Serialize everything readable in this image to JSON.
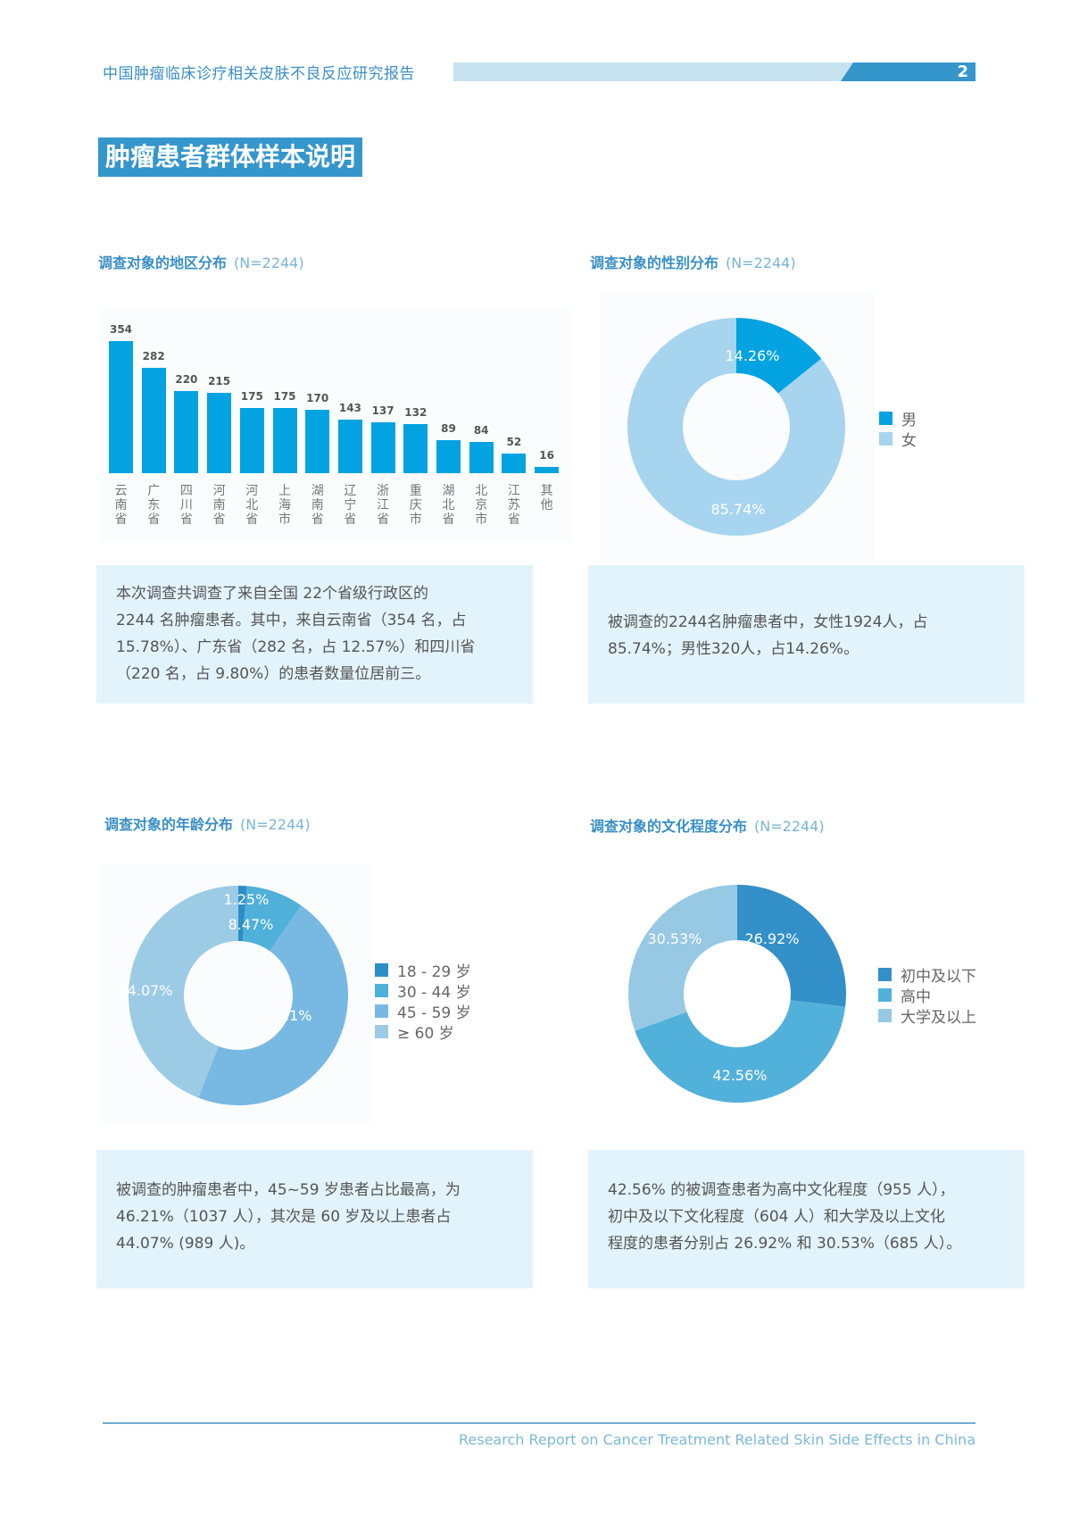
{
  "header": {
    "report_title": "中国肿瘤临床诊疗相关皮肤不良反应研究报告",
    "page_number": "2"
  },
  "page_title": "肿瘤患者群体样本说明",
  "colors": {
    "primary": "#3596cc",
    "bar": "#02a3e0",
    "info_bg": "#e2f3fb",
    "header_bar": "#c7e2ef"
  },
  "sections": {
    "region": {
      "title": "调查对象的地区分布",
      "n": "(N=2244)",
      "info": "本次调查共调查了来自全国 22个省级行政区的 2244 名肿瘤患者。其中，来自云南省（354 名，占 15.78%）、广东省（282 名，占 12.57%）和四川省（220 名，占 9.80%）的患者数量位居前三。",
      "info_lines": [
        "本次调查共调查了来自全国 22个省级行政区的",
        "2244 名肿瘤患者。其中，来自云南省（354 名，占",
        "15.78%）、广东省（282 名，占 12.57%）和四川省",
        "（220 名，占 9.80%）的患者数量位居前三。"
      ]
    },
    "gender": {
      "title": "调查对象的性别分布",
      "n": "(N=2244)",
      "info_lines": [
        "被调查的2244名肿瘤患者中，女性1924人，占",
        "85.74%；男性320人，占14.26%。"
      ]
    },
    "age": {
      "title": "调查对象的年龄分布",
      "n": "(N=2244)",
      "info_lines": [
        "被调查的肿瘤患者中，45~59 岁患者占比最高，为",
        "46.21%（1037 人），其次是 60 岁及以上患者占",
        "44.07% (989 人)。"
      ]
    },
    "education": {
      "title": "调查对象的文化程度分布",
      "n": "(N=2244)",
      "info_lines": [
        "42.56% 的被调查患者为高中文化程度（955 人），",
        "初中及以下文化程度（604 人）和大学及以上文化",
        "程度的患者分别占 26.92% 和 30.53%（685 人）。"
      ]
    }
  },
  "chart_data": [
    {
      "type": "bar",
      "title": "调查对象的地区分布 (N=2244)",
      "categories": [
        "云南省",
        "广东省",
        "四川省",
        "河南省",
        "河北省",
        "上海市",
        "湖南省",
        "辽宁省",
        "浙江省",
        "重庆市",
        "湖北省",
        "北京市",
        "江苏省",
        "其他"
      ],
      "values": [
        354,
        282,
        220,
        215,
        175,
        175,
        170,
        143,
        137,
        132,
        89,
        84,
        52,
        16
      ],
      "xlabel": "",
      "ylabel": "",
      "grid": false,
      "data_labels": true
    },
    {
      "type": "pie",
      "donut": true,
      "title": "调查对象的性别分布 (N=2244)",
      "categories": [
        "男",
        "女"
      ],
      "values": [
        14.26,
        85.74
      ],
      "labels": [
        "14.26%",
        "85.74%"
      ],
      "colors": [
        "#02a3e0",
        "#a7d4ef"
      ],
      "legend_position": "right"
    },
    {
      "type": "pie",
      "donut": true,
      "title": "调查对象的年龄分布 (N=2244)",
      "categories": [
        "18 - 29 岁",
        "30 - 44 岁",
        "45 - 59 岁",
        "≥ 60 岁"
      ],
      "values": [
        1.25,
        8.47,
        46.21,
        44.07
      ],
      "labels": [
        "1.25%",
        "8.47%",
        "46.21%",
        "44.07%"
      ],
      "colors": [
        "#2f8dc5",
        "#4fb0da",
        "#78b9e3",
        "#9ccbe6"
      ],
      "legend_position": "right"
    },
    {
      "type": "pie",
      "donut": true,
      "title": "调查对象的文化程度分布 (N=2244)",
      "categories": [
        "初中及以下",
        "高中",
        "大学及以上"
      ],
      "values": [
        26.92,
        42.56,
        30.53
      ],
      "labels": [
        "26.92%",
        "42.56%",
        "30.53%"
      ],
      "colors": [
        "#3390c8",
        "#52b1da",
        "#97c9e4"
      ],
      "legend_position": "right"
    }
  ],
  "footer": {
    "text": "Research Report on Cancer Treatment Related Skin Side Effects in China"
  }
}
